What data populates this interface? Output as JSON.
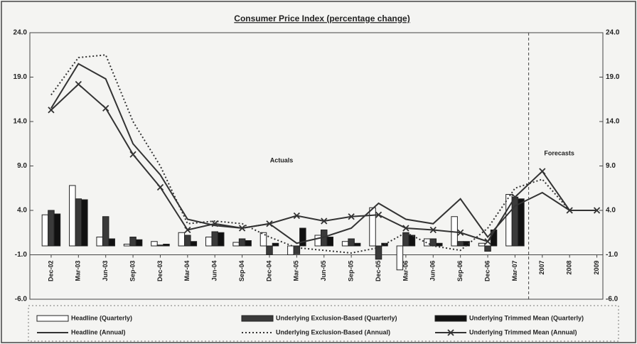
{
  "chart_data": {
    "type": "bar-line",
    "title": "Consumer Price Index (percentage change)",
    "annotations": [
      "Actuals",
      "Forecasts"
    ],
    "categories": [
      "Dec-02",
      "Mar-03",
      "Jun-03",
      "Sep-03",
      "Dec-03",
      "Mar-04",
      "Jun-04",
      "Sep-04",
      "Dec-04",
      "Mar-05",
      "Jun-05",
      "Sep-05",
      "Dec-05",
      "Mar-06",
      "Jun-06",
      "Sep-06",
      "Dec-06",
      "Mar-07",
      "2007",
      "2008",
      "2009"
    ],
    "forecast_from": "2007",
    "x_axis_crosses": -1.0,
    "ylim": [
      -6,
      24
    ],
    "yticks": [
      {
        "value": -6,
        "label": "-6.0"
      },
      {
        "value": -1,
        "label": "-1.0"
      },
      {
        "value": 4,
        "label": "4.0"
      },
      {
        "value": 9,
        "label": "9.0"
      },
      {
        "value": 14,
        "label": "14.0"
      },
      {
        "value": 19,
        "label": "19.0"
      },
      {
        "value": 24,
        "label": "24.0"
      }
    ],
    "y2lim": [
      -6,
      24
    ],
    "y2ticks": [
      {
        "value": -6,
        "label": "-6.0"
      },
      {
        "value": -1,
        "label": "-1.0"
      },
      {
        "value": 4,
        "label": "4.0"
      },
      {
        "value": 9,
        "label": "9.0"
      },
      {
        "value": 14,
        "label": "14.0"
      },
      {
        "value": 19,
        "label": "19.0"
      },
      {
        "value": 24,
        "label": "24.0"
      }
    ],
    "series": [
      {
        "name": "Headline (Quarterly)",
        "kind": "bar",
        "color": "#ffffff",
        "values": [
          3.5,
          6.8,
          1.0,
          0.2,
          0.5,
          1.5,
          1.0,
          0.4,
          1.5,
          -1.0,
          1.2,
          0.5,
          4.3,
          -2.7,
          0.8,
          3.3,
          0.3,
          5.8,
          null,
          null,
          null
        ]
      },
      {
        "name": "Underlying Exclusion-Based (Quarterly)",
        "kind": "bar",
        "color": "#3a3a3a",
        "values": [
          4.0,
          5.3,
          3.3,
          1.0,
          0.1,
          1.2,
          1.6,
          0.8,
          -1.0,
          -0.9,
          1.8,
          0.8,
          -1.5,
          1.5,
          0.8,
          0.5,
          -0.6,
          5.5,
          null,
          null,
          null
        ]
      },
      {
        "name": "Underlying Trimmed Mean (Quarterly)",
        "kind": "bar",
        "color": "#111111",
        "values": [
          3.6,
          5.2,
          0.8,
          0.7,
          0.2,
          0.5,
          1.5,
          0.6,
          0.3,
          2.0,
          1.0,
          0.3,
          0.3,
          1.2,
          0.3,
          0.5,
          1.8,
          5.3,
          null,
          null,
          null
        ]
      },
      {
        "name": "Headline (Annual)",
        "kind": "line",
        "style": "solid",
        "color": "#333333",
        "values": [
          15.5,
          20.5,
          18.8,
          11.5,
          8.0,
          3.0,
          2.3,
          2.0,
          2.5,
          0.3,
          1.0,
          2.0,
          4.8,
          3.0,
          2.5,
          5.3,
          1.0,
          4.5,
          6.0,
          4.0,
          4.0
        ]
      },
      {
        "name": "Underlying Exclusion-Based (Annual)",
        "kind": "line",
        "style": "dotted",
        "color": "#333333",
        "values": [
          17.0,
          21.2,
          21.5,
          14.0,
          9.0,
          2.5,
          2.8,
          2.5,
          1.0,
          -0.2,
          -0.5,
          -0.8,
          -0.2,
          1.5,
          0.0,
          -0.5,
          2.0,
          6.5,
          7.5,
          4.0,
          4.0
        ]
      },
      {
        "name": "Underlying Trimmed Mean (Annual)",
        "kind": "line",
        "style": "cross",
        "color": "#333333",
        "values": [
          15.3,
          18.2,
          15.5,
          10.3,
          6.6,
          1.8,
          2.5,
          2.0,
          2.5,
          3.4,
          2.8,
          3.3,
          3.5,
          2.0,
          1.8,
          1.5,
          0.5,
          5.5,
          8.4,
          4.0,
          4.0
        ]
      }
    ]
  }
}
